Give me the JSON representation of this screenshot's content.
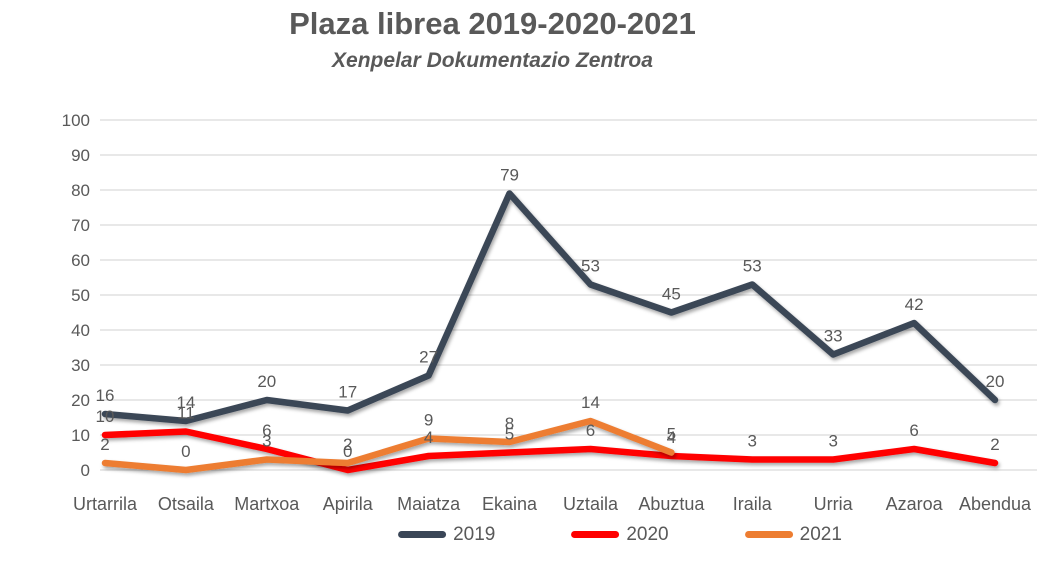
{
  "chart_data": {
    "type": "line",
    "title": "Plaza librea 2019-2020-2021",
    "subtitle": "Xenpelar Dokumentazio Zentroa",
    "categories": [
      "Urtarrila",
      "Otsaila",
      "Martxoa",
      "Apirila",
      "Maiatza",
      "Ekaina",
      "Uztaila",
      "Abuztua",
      "Iraila",
      "Urria",
      "Azaroa",
      "Abendua"
    ],
    "series": [
      {
        "name": "2019",
        "color": "#3A4657",
        "values": [
          16,
          14,
          20,
          17,
          27,
          79,
          53,
          45,
          53,
          33,
          42,
          20
        ]
      },
      {
        "name": "2020",
        "color": "#FF0000",
        "values": [
          10,
          11,
          6,
          0,
          4,
          5,
          6,
          4,
          3,
          3,
          6,
          2
        ]
      },
      {
        "name": "2021",
        "color": "#ED7D31",
        "values": [
          2,
          0,
          3,
          2,
          9,
          8,
          14,
          5,
          null,
          null,
          null,
          null
        ]
      }
    ],
    "ylim": [
      0,
      100
    ],
    "ytick_step": 10,
    "ytick_labels": [
      "0",
      "10",
      "20",
      "30",
      "40",
      "50",
      "60",
      "70",
      "80",
      "90",
      "100"
    ],
    "grid": true,
    "show_data_labels": true,
    "legend_position": "bottom"
  },
  "styles": {
    "text_color": "#595959",
    "grid_color": "#D9D9D9",
    "background": "#FFFFFF"
  }
}
